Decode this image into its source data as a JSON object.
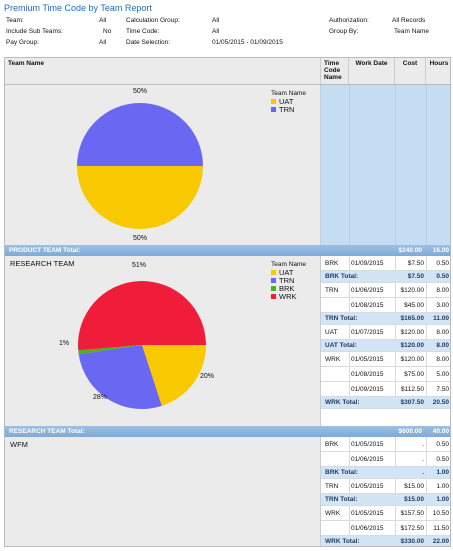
{
  "report": {
    "title": "Premium Time Code by Team Report",
    "params": {
      "team_label": "Team:",
      "team_value": "All",
      "include_sub_label": "Include Sub Teams:",
      "include_sub_value": "No",
      "paygroup_label": "Pay Group:",
      "paygroup_value": "All",
      "calc_label": "Calculation Group:",
      "calc_value": "All",
      "timecode_label": "Time Code:",
      "timecode_value": "All",
      "date_label": "Date Selection:",
      "date_value": "01/05/2015 - 01/09/2015",
      "auth_label": "Authorization:",
      "auth_value": "All Records",
      "groupby_label": "Group By:",
      "groupby_value": "Team Name"
    }
  },
  "columns": {
    "team_name": "Team Name",
    "time_code_name": "Time Code Name",
    "work_date": "Work Date",
    "cost": "Cost",
    "hours": "Hours"
  },
  "colors": {
    "UAT": "#f9c900",
    "TRN": "#6a67f2",
    "BRK": "#4cb224",
    "WRK": "#ef1c3a"
  },
  "legend_title": "Team Name",
  "product_team": {
    "pie_labels": {
      "top": "50%",
      "bottom": "50%"
    },
    "legend": [
      "UAT",
      "TRN"
    ],
    "total_label": "PRODUCT TEAM Total:",
    "total_cost": "$240.00",
    "total_hours": "16.00"
  },
  "research_team": {
    "name": "RESEARCH TEAM",
    "pie_labels": {
      "wrk": "51%",
      "uat": "20%",
      "trn": "28%",
      "brk": "1%"
    },
    "legend": [
      "UAT",
      "TRN",
      "BRK",
      "WRK"
    ],
    "rows": [
      {
        "code": "BRK",
        "date": "01/09/2015",
        "cost": "$7.50",
        "hours": "0.50"
      },
      {
        "subtotal": true,
        "label": "BRK Total:",
        "cost": "$7.50",
        "hours": "0.50"
      },
      {
        "code": "TRN",
        "date": "01/06/2015",
        "cost": "$120.00",
        "hours": "8.00"
      },
      {
        "code": "",
        "date": "01/08/2015",
        "cost": "$45.00",
        "hours": "3.00"
      },
      {
        "subtotal": true,
        "label": "TRN Total:",
        "cost": "$165.00",
        "hours": "11.00"
      },
      {
        "code": "UAT",
        "date": "01/07/2015",
        "cost": "$120.00",
        "hours": "8.00"
      },
      {
        "subtotal": true,
        "label": "UAT Total:",
        "cost": "$120.00",
        "hours": "8.00"
      },
      {
        "code": "WRK",
        "date": "01/05/2015",
        "cost": "$120.00",
        "hours": "8.00"
      },
      {
        "code": "",
        "date": "01/08/2015",
        "cost": "$75.00",
        "hours": "5.00"
      },
      {
        "code": "",
        "date": "01/09/2015",
        "cost": "$112.50",
        "hours": "7.50"
      },
      {
        "subtotal": true,
        "label": "WRK Total:",
        "cost": "$307.50",
        "hours": "20.50"
      }
    ],
    "total_label": "RESEARCH TEAM Total:",
    "total_cost": "$600.00",
    "total_hours": "40.00"
  },
  "wfm": {
    "name": "WFM",
    "rows": [
      {
        "code": "BRK",
        "date": "01/05/2015",
        "cost": ".",
        "hours": "0.50"
      },
      {
        "code": "",
        "date": "01/06/2015",
        "cost": ".",
        "hours": "0.50"
      },
      {
        "subtotal": true,
        "label": "BRK Total:",
        "cost": ".",
        "hours": "1.00"
      },
      {
        "code": "TRN",
        "date": "01/05/2015",
        "cost": "$15.00",
        "hours": "1.00"
      },
      {
        "subtotal": true,
        "label": "TRN Total:",
        "cost": "$15.00",
        "hours": "1.00"
      },
      {
        "code": "WRK",
        "date": "01/05/2015",
        "cost": "$157.50",
        "hours": "10.50"
      },
      {
        "code": "",
        "date": "01/06/2015",
        "cost": "$172.50",
        "hours": "11.50"
      },
      {
        "subtotal": true,
        "label": "WRK Total:",
        "cost": "$330.00",
        "hours": "22.00"
      }
    ]
  }
}
